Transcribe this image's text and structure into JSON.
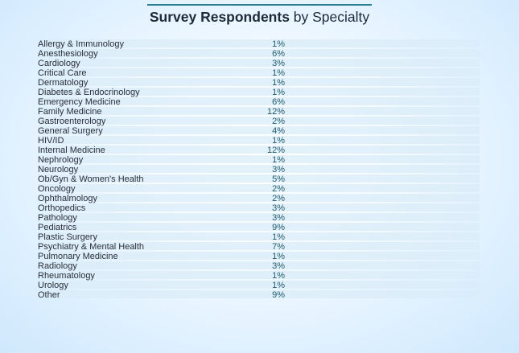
{
  "chart_data": {
    "type": "table",
    "title_bold": "Survey Respondents",
    "title_rest": " by Specialty",
    "categories": [
      "Allergy & Immunology",
      "Anesthesiology",
      "Cardiology",
      "Critical Care",
      "Dermatology",
      "Diabetes & Endocrinology",
      "Emergency Medicine",
      "Family Medicine",
      "Gastroenterology",
      "General Surgery",
      "HIV/ID",
      "Internal Medicine",
      "Nephrology",
      "Neurology",
      "Ob/Gyn & Women's Health",
      "Oncology",
      "Ophthalmology",
      "Orthopedics",
      "Pathology",
      "Pediatrics",
      "Plastic Surgery",
      "Psychiatry & Mental Health",
      "Pulmonary Medicine",
      "Radiology",
      "Rheumatology",
      "Urology",
      "Other"
    ],
    "labels": [
      "1%",
      "6%",
      "3%",
      "1%",
      "1%",
      "1%",
      "6%",
      "12%",
      "2%",
      "4%",
      "1%",
      "12%",
      "1%",
      "3%",
      "5%",
      "2%",
      "2%",
      "3%",
      "3%",
      "9%",
      "1%",
      "7%",
      "1%",
      "3%",
      "1%",
      "1%",
      "9%"
    ],
    "colors": {
      "text": "#2a2f38",
      "value": "#1f5a6c",
      "stripe": "#d9ecf8",
      "rule": "#2a7f8e"
    }
  }
}
